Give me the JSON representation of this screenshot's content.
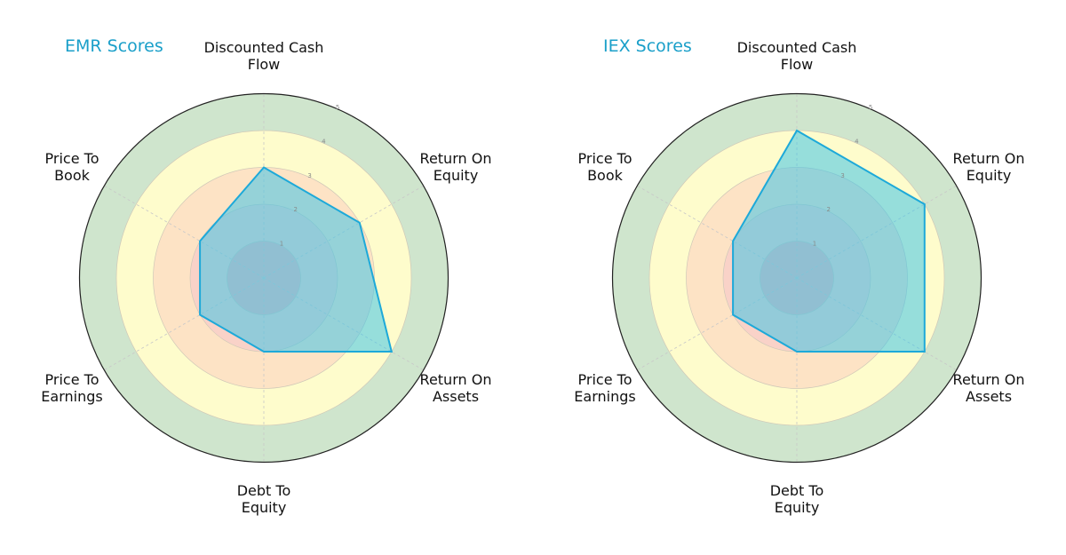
{
  "chart_data": [
    {
      "type": "radar",
      "title": "EMR Scores",
      "categories": [
        "Discounted Cash Flow",
        "Return On Equity",
        "Return On Assets",
        "Debt To Equity",
        "Price To Earnings",
        "Price To Book"
      ],
      "values": [
        3,
        3,
        4,
        2,
        2,
        2
      ],
      "rlim": [
        0,
        5
      ],
      "rticks": [
        1,
        2,
        3,
        4,
        5
      ],
      "bands": [
        {
          "from": 0,
          "to": 1,
          "color": "#f4b9b9"
        },
        {
          "from": 1,
          "to": 2,
          "color": "#f9d2c8"
        },
        {
          "from": 2,
          "to": 3,
          "color": "#fde3c5"
        },
        {
          "from": 3,
          "to": 4,
          "color": "#fefccc"
        },
        {
          "from": 4,
          "to": 5,
          "color": "#cfe5cd"
        }
      ],
      "fill_color": "#40c4e8",
      "line_color": "#1da9d9"
    },
    {
      "type": "radar",
      "title": "IEX Scores",
      "categories": [
        "Discounted Cash Flow",
        "Return On Equity",
        "Return On Assets",
        "Debt To Equity",
        "Price To Earnings",
        "Price To Book"
      ],
      "values": [
        4,
        4,
        4,
        2,
        2,
        2
      ],
      "rlim": [
        0,
        5
      ],
      "rticks": [
        1,
        2,
        3,
        4,
        5
      ],
      "bands": [
        {
          "from": 0,
          "to": 1,
          "color": "#f4b9b9"
        },
        {
          "from": 1,
          "to": 2,
          "color": "#f9d2c8"
        },
        {
          "from": 2,
          "to": 3,
          "color": "#fde3c5"
        },
        {
          "from": 3,
          "to": 4,
          "color": "#fefccc"
        },
        {
          "from": 4,
          "to": 5,
          "color": "#cfe5cd"
        }
      ],
      "fill_color": "#40c4e8",
      "line_color": "#1da9d9"
    }
  ],
  "labels": {
    "dcf": "Discounted Cash\nFlow",
    "roe": "Return On\nEquity",
    "roa": "Return On\nAssets",
    "de": "Debt To\nEquity",
    "pe": "Price To\nEarnings",
    "pb": "Price To\nBook"
  }
}
